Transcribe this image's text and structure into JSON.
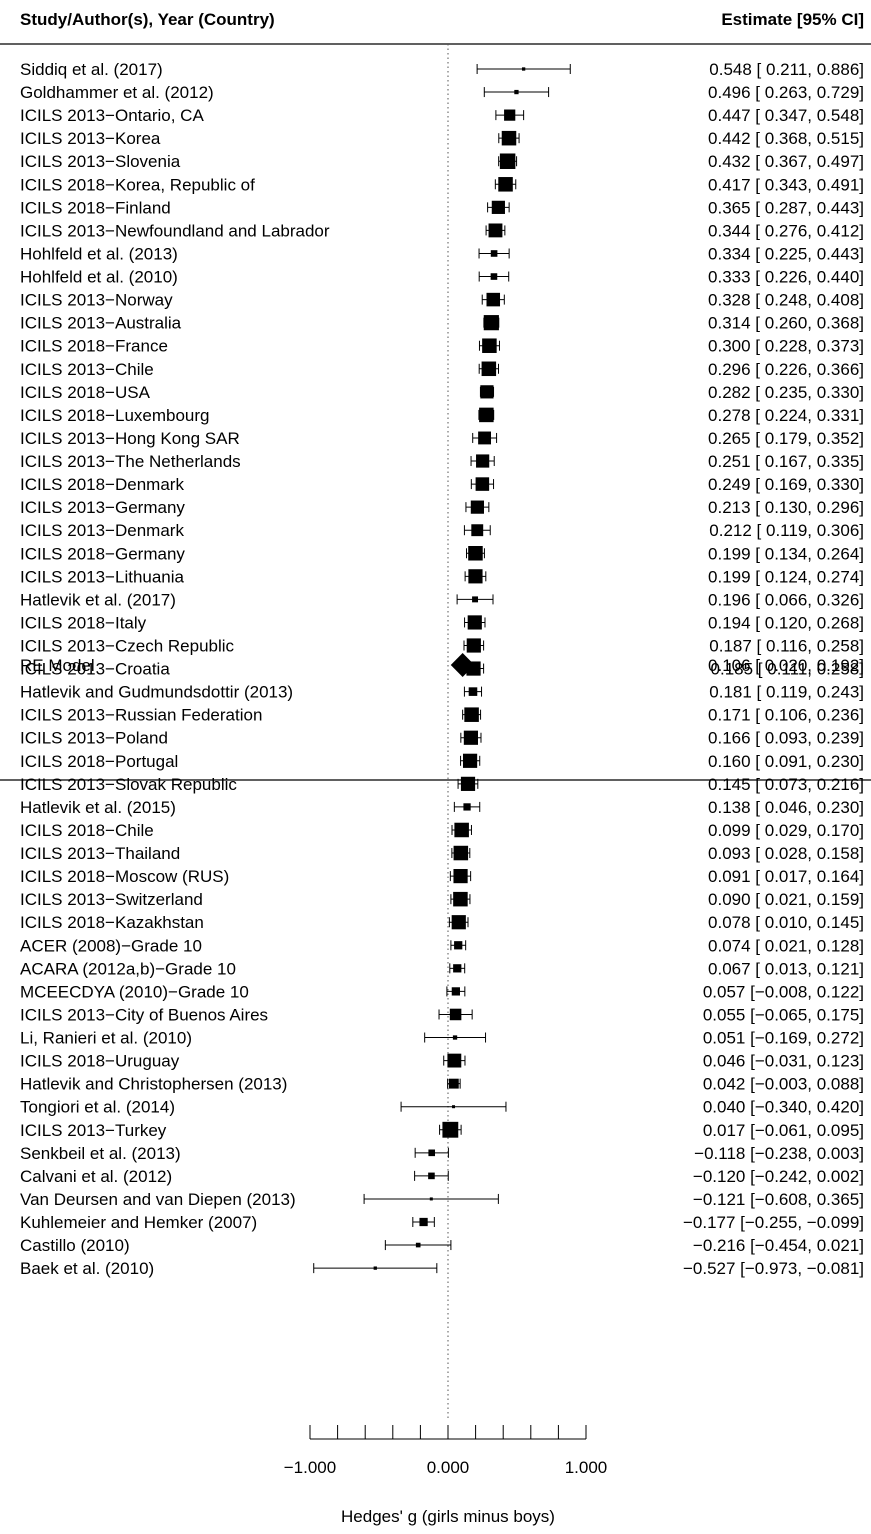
{
  "chart_data": {
    "type": "forest",
    "header": {
      "left": "Study/Author(s), Year (Country)",
      "right": "Estimate [95% CI]"
    },
    "xlabel": "Hedges' g (girls minus boys)",
    "xlim": [
      -1.0,
      1.0
    ],
    "xticks": [
      -1.0,
      -0.8,
      -0.6,
      -0.4,
      -0.2,
      0.0,
      0.2,
      0.4,
      0.6,
      0.8,
      1.0
    ],
    "xtick_labels": [
      "-1.000",
      "0.000",
      "1.000"
    ],
    "xtick_label_values": [
      -1.0,
      0.0,
      1.0
    ],
    "reference_line": 0.0,
    "studies": [
      {
        "label": "Siddiq et al. (2017)",
        "est": 0.548,
        "lo": 0.211,
        "hi": 0.886,
        "ci_text": "0.548 [ 0.211,  0.886]",
        "weight": 1.0
      },
      {
        "label": "Goldhammer et al. (2012)",
        "est": 0.496,
        "lo": 0.263,
        "hi": 0.729,
        "ci_text": "0.496 [ 0.263,  0.729]",
        "weight": 1.3
      },
      {
        "label": "ICILS 2013−Ontario, CA",
        "est": 0.447,
        "lo": 0.347,
        "hi": 0.548,
        "ci_text": "0.447 [ 0.347,  0.548]",
        "weight": 3.4
      },
      {
        "label": "ICILS 2013−Korea",
        "est": 0.442,
        "lo": 0.368,
        "hi": 0.515,
        "ci_text": "0.442 [ 0.368,  0.515]",
        "weight": 4.4
      },
      {
        "label": "ICILS 2013−Slovenia",
        "est": 0.432,
        "lo": 0.367,
        "hi": 0.497,
        "ci_text": "0.432 [ 0.367,  0.497]",
        "weight": 4.7
      },
      {
        "label": "ICILS 2018−Korea, Republic of",
        "est": 0.417,
        "lo": 0.343,
        "hi": 0.491,
        "ci_text": "0.417 [ 0.343,  0.491]",
        "weight": 4.4
      },
      {
        "label": "ICILS 2018−Finland",
        "est": 0.365,
        "lo": 0.287,
        "hi": 0.443,
        "ci_text": "0.365 [ 0.287,  0.443]",
        "weight": 4.0
      },
      {
        "label": "ICILS 2013−Newfoundland and Labrador",
        "est": 0.344,
        "lo": 0.276,
        "hi": 0.412,
        "ci_text": "0.344 [ 0.276,  0.412]",
        "weight": 4.2
      },
      {
        "label": "Hohlfeld et al. (2013)",
        "est": 0.334,
        "lo": 0.225,
        "hi": 0.443,
        "ci_text": "0.334 [ 0.225,  0.443]",
        "weight": 2.0
      },
      {
        "label": "Hohlfeld et al. (2010)",
        "est": 0.333,
        "lo": 0.226,
        "hi": 0.44,
        "ci_text": "0.333 [ 0.226,  0.440]",
        "weight": 2.0
      },
      {
        "label": "ICILS 2013−Norway",
        "est": 0.328,
        "lo": 0.248,
        "hi": 0.408,
        "ci_text": "0.328 [ 0.248,  0.408]",
        "weight": 4.1
      },
      {
        "label": "ICILS 2013−Australia",
        "est": 0.314,
        "lo": 0.26,
        "hi": 0.368,
        "ci_text": "0.314 [ 0.260,  0.368]",
        "weight": 4.6
      },
      {
        "label": "ICILS 2018−France",
        "est": 0.3,
        "lo": 0.228,
        "hi": 0.373,
        "ci_text": "0.300 [ 0.228,  0.373]",
        "weight": 4.4
      },
      {
        "label": "ICILS 2013−Chile",
        "est": 0.296,
        "lo": 0.226,
        "hi": 0.366,
        "ci_text": "0.296 [ 0.226,  0.366]",
        "weight": 4.4
      },
      {
        "label": "ICILS 2018−USA",
        "est": 0.282,
        "lo": 0.235,
        "hi": 0.33,
        "ci_text": "0.282 [ 0.235,  0.330]",
        "weight": 4.0
      },
      {
        "label": "ICILS 2018−Luxembourg",
        "est": 0.278,
        "lo": 0.224,
        "hi": 0.331,
        "ci_text": "0.278 [ 0.224,  0.331]",
        "weight": 4.4
      },
      {
        "label": "ICILS 2013−Hong Kong SAR",
        "est": 0.265,
        "lo": 0.179,
        "hi": 0.352,
        "ci_text": "0.265 [ 0.179,  0.352]",
        "weight": 3.9
      },
      {
        "label": "ICILS 2013−The Netherlands",
        "est": 0.251,
        "lo": 0.167,
        "hi": 0.335,
        "ci_text": "0.251 [ 0.167,  0.335]",
        "weight": 4.0
      },
      {
        "label": "ICILS 2018−Denmark",
        "est": 0.249,
        "lo": 0.169,
        "hi": 0.33,
        "ci_text": "0.249 [ 0.169,  0.330]",
        "weight": 4.1
      },
      {
        "label": "ICILS 2013−Germany",
        "est": 0.213,
        "lo": 0.13,
        "hi": 0.296,
        "ci_text": "0.213 [ 0.130,  0.296]",
        "weight": 4.0
      },
      {
        "label": "ICILS 2013−Denmark",
        "est": 0.212,
        "lo": 0.119,
        "hi": 0.306,
        "ci_text": "0.212 [ 0.119,  0.306]",
        "weight": 3.6
      },
      {
        "label": "ICILS 2018−Germany",
        "est": 0.199,
        "lo": 0.134,
        "hi": 0.264,
        "ci_text": "0.199 [ 0.134,  0.264]",
        "weight": 4.4
      },
      {
        "label": "ICILS 2013−Lithuania",
        "est": 0.199,
        "lo": 0.124,
        "hi": 0.274,
        "ci_text": "0.199 [ 0.124,  0.274]",
        "weight": 4.3
      },
      {
        "label": "Hatlevik et al. (2017)",
        "est": 0.196,
        "lo": 0.066,
        "hi": 0.326,
        "ci_text": "0.196 [ 0.066,  0.326]",
        "weight": 1.8
      },
      {
        "label": "ICILS 2018−Italy",
        "est": 0.194,
        "lo": 0.12,
        "hi": 0.268,
        "ci_text": "0.194 [ 0.120,  0.268]",
        "weight": 4.3
      },
      {
        "label": "ICILS 2013−Czech Republic",
        "est": 0.187,
        "lo": 0.116,
        "hi": 0.258,
        "ci_text": "0.187 [ 0.116,  0.258]",
        "weight": 4.3
      },
      {
        "label": "ICILS 2013−Croatia",
        "est": 0.185,
        "lo": 0.111,
        "hi": 0.258,
        "ci_text": "0.185 [ 0.111,  0.258]",
        "weight": 4.3
      },
      {
        "label": "Hatlevik and Gudmundsdottir (2013)",
        "est": 0.181,
        "lo": 0.119,
        "hi": 0.243,
        "ci_text": "0.181 [ 0.119,  0.243]",
        "weight": 2.6
      },
      {
        "label": "ICILS 2013−Russian Federation",
        "est": 0.171,
        "lo": 0.106,
        "hi": 0.236,
        "ci_text": "0.171 [ 0.106,  0.236]",
        "weight": 4.4
      },
      {
        "label": "ICILS 2013−Poland",
        "est": 0.166,
        "lo": 0.093,
        "hi": 0.239,
        "ci_text": "0.166 [ 0.093,  0.239]",
        "weight": 4.3
      },
      {
        "label": "ICILS 2018−Portugal",
        "est": 0.16,
        "lo": 0.091,
        "hi": 0.23,
        "ci_text": "0.160 [ 0.091,  0.230]",
        "weight": 4.3
      },
      {
        "label": "ICILS 2013−Slovak Republic",
        "est": 0.145,
        "lo": 0.073,
        "hi": 0.216,
        "ci_text": "0.145 [ 0.073,  0.216]",
        "weight": 4.3
      },
      {
        "label": "Hatlevik et al. (2015)",
        "est": 0.138,
        "lo": 0.046,
        "hi": 0.23,
        "ci_text": "0.138 [ 0.046,  0.230]",
        "weight": 2.2
      },
      {
        "label": "ICILS 2018−Chile",
        "est": 0.099,
        "lo": 0.029,
        "hi": 0.17,
        "ci_text": "0.099 [ 0.029,  0.170]",
        "weight": 4.4
      },
      {
        "label": "ICILS 2013−Thailand",
        "est": 0.093,
        "lo": 0.028,
        "hi": 0.158,
        "ci_text": "0.093 [ 0.028,  0.158]",
        "weight": 4.4
      },
      {
        "label": "ICILS 2018−Moscow (RUS)",
        "est": 0.091,
        "lo": 0.017,
        "hi": 0.164,
        "ci_text": "0.091 [ 0.017,  0.164]",
        "weight": 4.3
      },
      {
        "label": "ICILS 2013−Switzerland",
        "est": 0.09,
        "lo": 0.021,
        "hi": 0.159,
        "ci_text": "0.090 [ 0.021,  0.159]",
        "weight": 4.4
      },
      {
        "label": "ICILS 2018−Kazakhstan",
        "est": 0.078,
        "lo": 0.01,
        "hi": 0.145,
        "ci_text": "0.078 [ 0.010,  0.145]",
        "weight": 4.3
      },
      {
        "label": "ACER (2008)−Grade 10",
        "est": 0.074,
        "lo": 0.021,
        "hi": 0.128,
        "ci_text": "0.074 [ 0.021,  0.128]",
        "weight": 2.5
      },
      {
        "label": "ACARA (2012a,b)−Grade 10",
        "est": 0.067,
        "lo": 0.013,
        "hi": 0.121,
        "ci_text": "0.067 [ 0.013,  0.121]",
        "weight": 2.5
      },
      {
        "label": "MCEECDYA (2010)−Grade 10",
        "est": 0.057,
        "lo": -0.008,
        "hi": 0.122,
        "ci_text": "0.057 [−0.008,  0.122]",
        "weight": 2.5
      },
      {
        "label": "ICILS 2013−City of Buenos Aires",
        "est": 0.055,
        "lo": -0.065,
        "hi": 0.175,
        "ci_text": "0.055 [−0.065,  0.175]",
        "weight": 3.5
      },
      {
        "label": "Li, Ranieri et al. (2010)",
        "est": 0.051,
        "lo": -0.169,
        "hi": 0.272,
        "ci_text": "0.051 [−0.169,  0.272]",
        "weight": 1.3
      },
      {
        "label": "ICILS 2018−Uruguay",
        "est": 0.046,
        "lo": -0.031,
        "hi": 0.123,
        "ci_text": "0.046 [−0.031,  0.123]",
        "weight": 4.2
      },
      {
        "label": "Hatlevik and Christophersen (2013)",
        "est": 0.042,
        "lo": -0.003,
        "hi": 0.088,
        "ci_text": "0.042 [−0.003,  0.088]",
        "weight": 3.0
      },
      {
        "label": "Tongiori et al. (2014)",
        "est": 0.04,
        "lo": -0.34,
        "hi": 0.42,
        "ci_text": "0.040 [−0.340,  0.420]",
        "weight": 0.8
      },
      {
        "label": "ICILS 2013−Turkey",
        "est": 0.017,
        "lo": -0.061,
        "hi": 0.095,
        "ci_text": "0.017 [−0.061,  0.095]",
        "weight": 4.8
      },
      {
        "label": "Senkbeil et al. (2013)",
        "est": -0.118,
        "lo": -0.238,
        "hi": 0.003,
        "ci_text": "−0.118 [−0.238,  0.003]",
        "weight": 2.0
      },
      {
        "label": "Calvani et al. (2012)",
        "est": -0.12,
        "lo": -0.242,
        "hi": 0.002,
        "ci_text": "−0.120 [−0.242,  0.002]",
        "weight": 2.0
      },
      {
        "label": "Van Deursen and van Diepen (2013)",
        "est": -0.121,
        "lo": -0.608,
        "hi": 0.365,
        "ci_text": "−0.121 [−0.608,  0.365]",
        "weight": 0.6
      },
      {
        "label": "Kuhlemeier and Hemker (2007)",
        "est": -0.177,
        "lo": -0.255,
        "hi": -0.099,
        "ci_text": "−0.177 [−0.255, −0.099]",
        "weight": 2.5
      },
      {
        "label": "Castillo (2010)",
        "est": -0.216,
        "lo": -0.454,
        "hi": 0.021,
        "ci_text": "−0.216 [−0.454,  0.021]",
        "weight": 1.4
      },
      {
        "label": "Baek et al. (2010)",
        "est": -0.527,
        "lo": -0.973,
        "hi": -0.081,
        "ci_text": "−0.527 [−0.973, −0.081]",
        "weight": 1.0
      }
    ],
    "summary": {
      "label": "RE Model",
      "est": 0.106,
      "lo": 0.02,
      "hi": 0.192,
      "ci_text": "0.106 [ 0.020,  0.192]"
    }
  }
}
